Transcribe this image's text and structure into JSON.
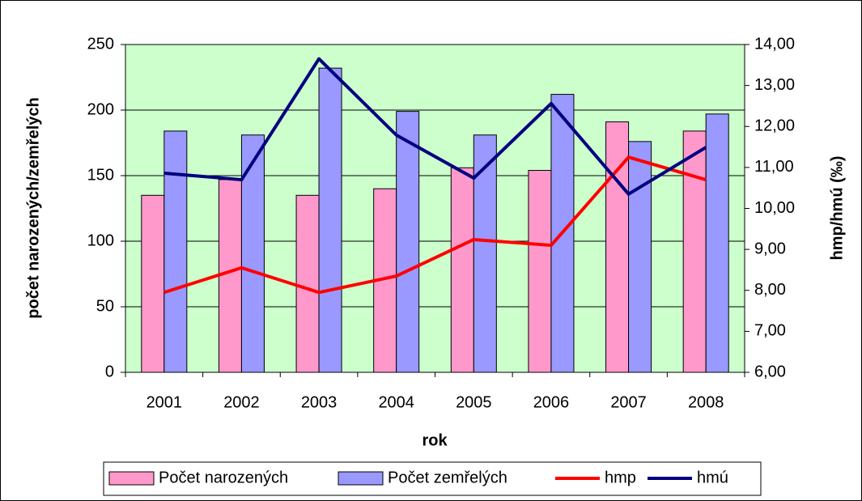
{
  "chart_data": {
    "type": "bar",
    "categories": [
      "2001",
      "2002",
      "2003",
      "2004",
      "2005",
      "2006",
      "2007",
      "2008"
    ],
    "xlabel": "rok",
    "ylabel": "počet narozených/zemřelých",
    "y2label": "hmp/hmú (‰)",
    "ylim": [
      0,
      250
    ],
    "yticks": [
      0,
      50,
      100,
      150,
      200,
      250
    ],
    "y2lim": [
      6,
      14
    ],
    "y2ticks": [
      {
        "value": 6,
        "label": "6,00"
      },
      {
        "value": 7,
        "label": "7,00"
      },
      {
        "value": 8,
        "label": "8,00"
      },
      {
        "value": 9,
        "label": "9,00"
      },
      {
        "value": 10,
        "label": "10,00"
      },
      {
        "value": 11,
        "label": "11,00"
      },
      {
        "value": 12,
        "label": "12,00"
      },
      {
        "value": 13,
        "label": "13,00"
      },
      {
        "value": 14,
        "label": "14,00"
      }
    ],
    "plot_background": "#ccffcc",
    "legend": "bottom",
    "series": [
      {
        "name": "Počet narozených",
        "type": "bar",
        "color": "#ff99cc",
        "values": [
          135,
          147,
          135,
          140,
          156,
          154,
          191,
          184
        ]
      },
      {
        "name": "Počet zemřelých",
        "type": "bar",
        "color": "#9999ff",
        "values": [
          184,
          181,
          232,
          199,
          181,
          212,
          176,
          197
        ]
      },
      {
        "name": "hmp",
        "type": "line",
        "axis": "y2",
        "color": "#ff0000",
        "values": [
          7.95,
          8.55,
          7.95,
          8.35,
          9.24,
          9.1,
          11.25,
          10.7
        ]
      },
      {
        "name": "hmú",
        "type": "line",
        "axis": "y2",
        "color": "#000080",
        "values": [
          10.86,
          10.7,
          13.65,
          11.79,
          10.74,
          12.56,
          10.35,
          11.49
        ]
      }
    ]
  }
}
